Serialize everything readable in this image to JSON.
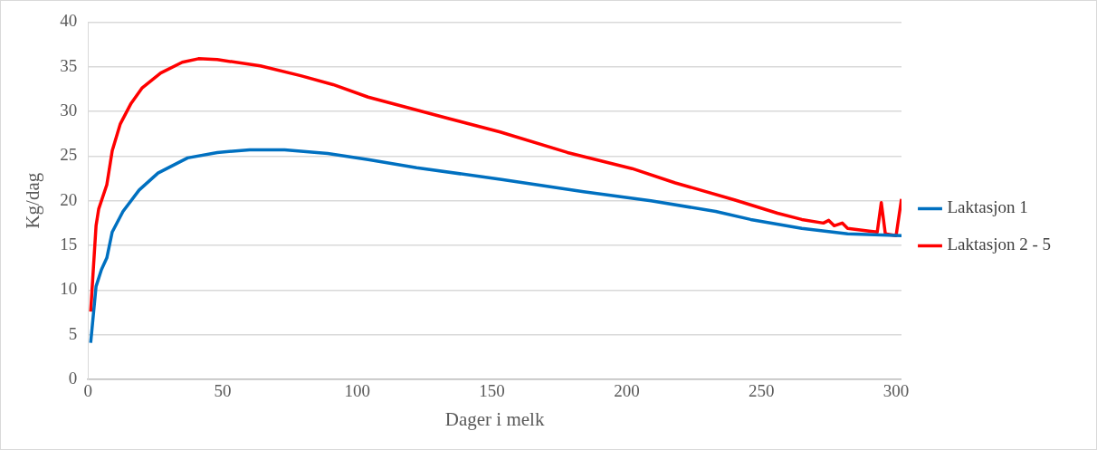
{
  "chart_data": {
    "type": "line",
    "xlabel": "Dager i melk",
    "ylabel": "Kg/dag",
    "xlim": [
      0,
      302
    ],
    "xticks": [
      0,
      50,
      100,
      150,
      200,
      250,
      300
    ],
    "ylim": [
      0,
      40
    ],
    "yticks": [
      0,
      5,
      10,
      15,
      20,
      25,
      30,
      35,
      40
    ],
    "grid": "y",
    "legend": "right",
    "marker": "none",
    "line_style": "solid",
    "series": [
      {
        "name": "Laktasjon 1",
        "color": "#0070c0",
        "x": [
          1,
          3,
          5,
          7,
          9,
          13,
          19,
          26,
          37,
          48,
          60,
          73,
          89,
          104,
          122,
          153,
          184,
          209,
          233,
          246,
          265,
          282,
          302
        ],
        "values": [
          4.1,
          10.4,
          12.3,
          13.6,
          16.5,
          18.8,
          21.2,
          23.1,
          24.8,
          25.4,
          25.7,
          25.7,
          25.3,
          24.6,
          23.7,
          22.4,
          21.0,
          20.0,
          18.8,
          17.9,
          16.9,
          16.3,
          16.1
        ]
      },
      {
        "name": "Laktasjon 2 - 5",
        "color": "#ff0000",
        "x": [
          1,
          3,
          4,
          7,
          9,
          12,
          16,
          20,
          27,
          35,
          41,
          48,
          64,
          79,
          91,
          104,
          134,
          153,
          178,
          202,
          218,
          240,
          256,
          265,
          273,
          275,
          277,
          280,
          282,
          290,
          293,
          294.5,
          296,
          300,
          302
        ],
        "values": [
          7.6,
          17.2,
          19.1,
          21.8,
          25.6,
          28.6,
          30.9,
          32.6,
          34.3,
          35.5,
          35.9,
          35.8,
          35.1,
          34.0,
          33.0,
          31.6,
          29.2,
          27.7,
          25.4,
          23.6,
          22.0,
          20.1,
          18.6,
          17.9,
          17.5,
          17.8,
          17.2,
          17.5,
          16.9,
          16.6,
          16.5,
          19.8,
          16.3,
          16.1,
          20.2
        ]
      }
    ]
  }
}
